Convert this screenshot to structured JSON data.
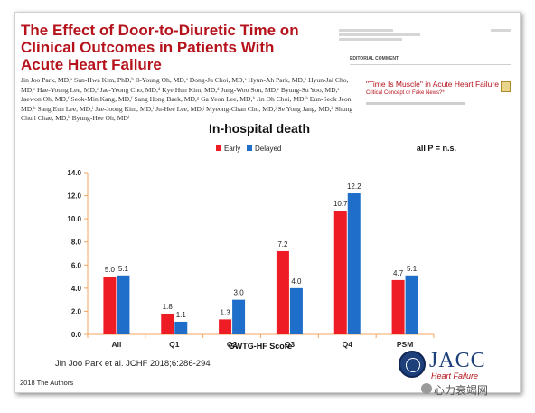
{
  "paper": {
    "title": "The Effect of Door-to-Diuretic Time on Clinical Outcomes in Patients With Acute Heart Failure",
    "authors": "Jin Joo Park, MD,ᵃ Sun-Hwa Kim, PhD,ᵇ Il-Young Oh, MD,ᵃ Dong-Ju Choi, MD,ᵃ Hyun-Ah Park, MD,ᵇ Hyun-Jai Cho, MD,ᶜ Hae-Young Lee, MD,ᶜ Jae-Yeong Cho, MD,ᵈ Kye Hun Kim, MD,ᵈ Jung-Woo Son, MD,ᵉ Byung-Su Yoo, MD,ᵉ Jaewon Oh, MD,ᶠ Seok-Min Kang, MD,ᶠ Sang Hong Baek, MD,ᵍ Ga Yeon Lee, MD,ʰ Jin Oh Choi, MD,ʰ Eun-Seok Jeon, MD,ʰ Sang Eun Lee, MD,ⁱ Jae-Joong Kim, MD,ⁱ Ju-Hee Lee, MD,ʲ Myeong-Chan Cho, MD,ʲ Se Yong Jang, MD,ᵏ Shung Chull Chae, MD,ᵏ Byung-Hee Oh, MDˡ"
  },
  "editorial": {
    "label": "EDITORIAL COMMENT",
    "title": "\"Time Is Muscle\" in Acute Heart Failure",
    "subtitle": "Critical Concept or Fake News?*"
  },
  "chart_data": {
    "type": "bar",
    "title": "In-hospital death",
    "annotation": "all P = n.s.",
    "xlabel": "GWTG-HF Score",
    "ylabel": "",
    "ylim": [
      0,
      14
    ],
    "yticks": [
      "0.0",
      "2.0",
      "4.0",
      "6.0",
      "8.0",
      "10.0",
      "12.0",
      "14.0"
    ],
    "categories": [
      "All",
      "Q1",
      "Q2",
      "Q3",
      "Q4",
      "PSM"
    ],
    "series": [
      {
        "name": "Early",
        "color": "#ee1c25",
        "values": [
          5.0,
          1.8,
          1.3,
          7.2,
          10.7,
          4.7
        ]
      },
      {
        "name": "Delayed",
        "color": "#1f6ec9",
        "values": [
          5.1,
          1.1,
          3.0,
          4.0,
          12.2,
          5.1
        ]
      }
    ],
    "grid": false,
    "legend": "top-center"
  },
  "citation": "Jin Joo Park et al. JCHF 2018;6:286-294",
  "copyright": "2018 The Authors",
  "journal": {
    "name": "JACC",
    "subtitle": "Heart Failure"
  },
  "watermark": "心力衰竭网",
  "colors": {
    "title_red": "#b5121b",
    "early": "#ee1c25",
    "delayed": "#1f6ec9",
    "axis_orange": "#f4a460"
  }
}
